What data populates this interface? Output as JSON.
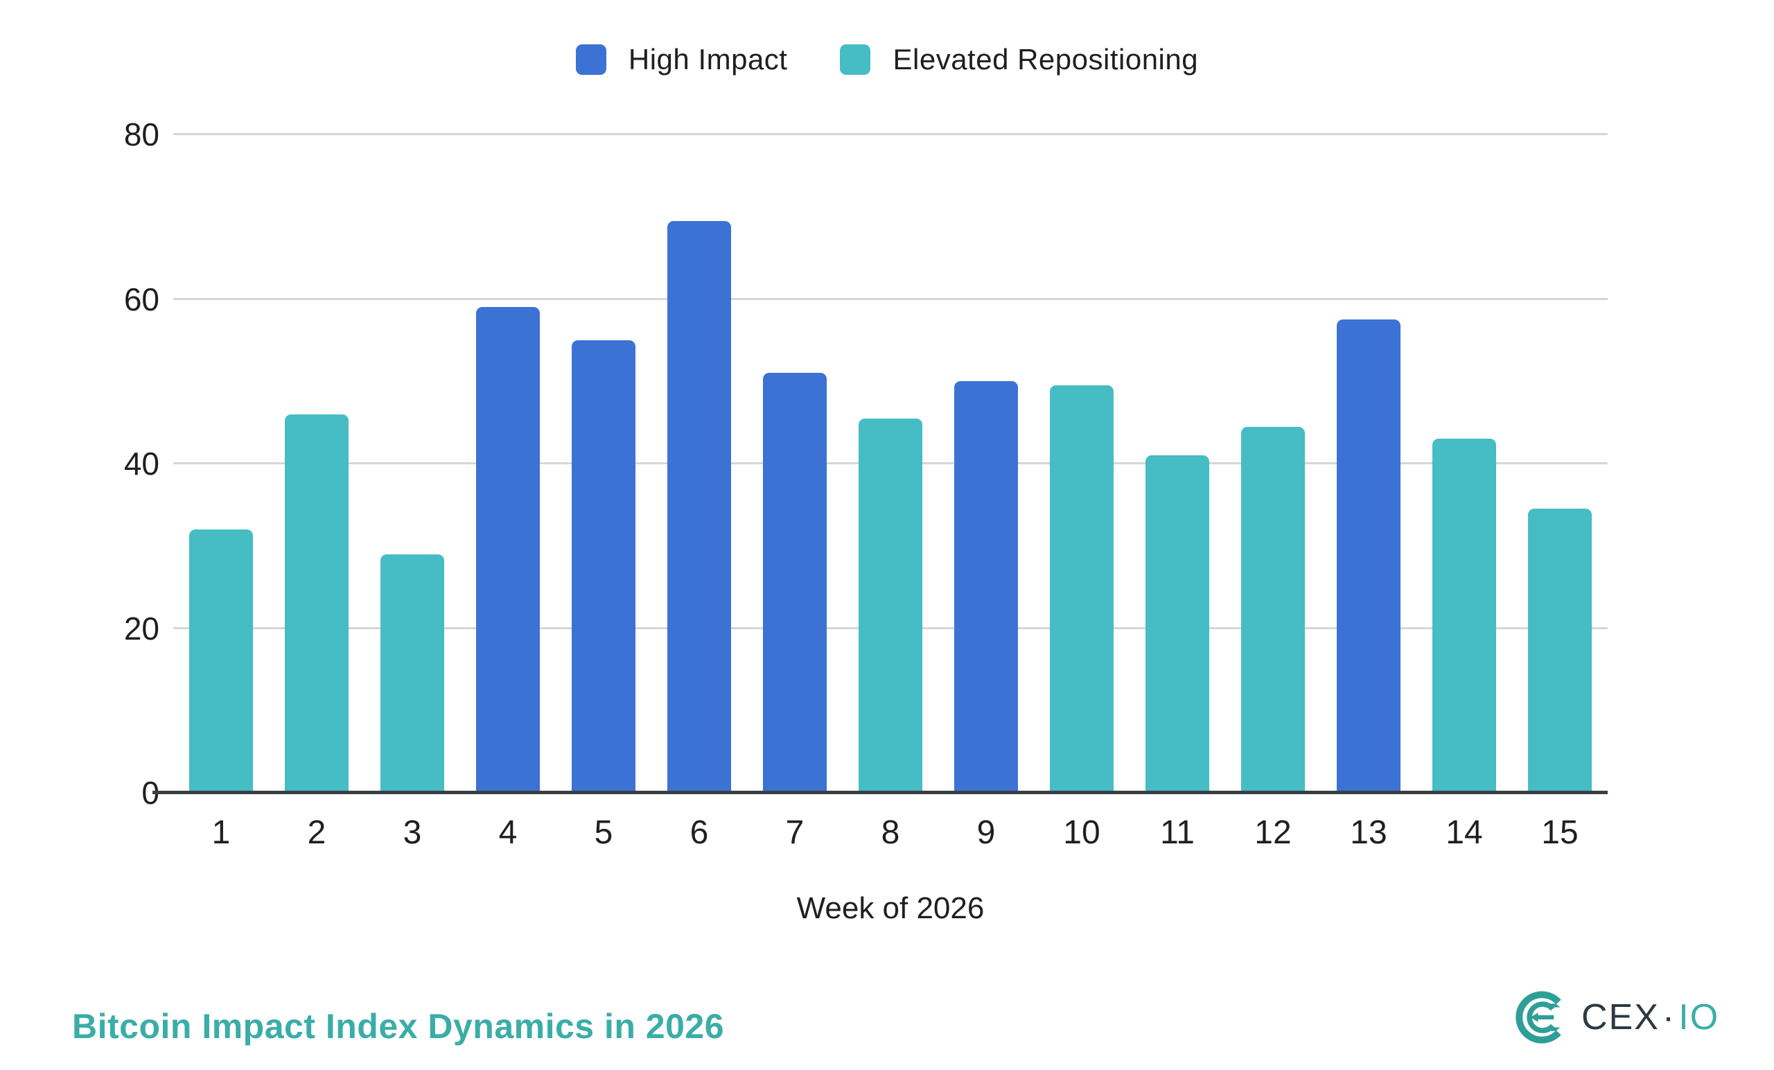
{
  "legend": {
    "items": [
      {
        "label": "High Impact",
        "color": "#3d72d5"
      },
      {
        "label": "Elevated Repositioning",
        "color": "#46bcc4"
      }
    ]
  },
  "footer": {
    "title": "Bitcoin Impact Index Dynamics in 2026",
    "title_color": "#3badA7",
    "logo": {
      "icon_name": "cexio-logo-icon",
      "text_primary": "CEX",
      "separator": "·",
      "text_secondary": "IO",
      "mark_color": "#2e9e98",
      "text_color": "#2d383f",
      "accent_color": "#3badA7"
    }
  },
  "chart_data": {
    "type": "bar",
    "title": "Bitcoin Impact Index Dynamics in 2026",
    "xlabel": "Week of 2026",
    "ylabel": "",
    "ylim": [
      0,
      80
    ],
    "y_ticks": [
      80,
      60,
      40,
      20,
      0
    ],
    "grid": "horizontal",
    "legend_position": "top-center",
    "categories": [
      1,
      2,
      3,
      4,
      5,
      6,
      7,
      8,
      9,
      10,
      11,
      12,
      13,
      14,
      15
    ],
    "series": [
      {
        "name": "High Impact",
        "color": "#3d72d5",
        "values": [
          null,
          null,
          null,
          59,
          55,
          69.5,
          51,
          null,
          50,
          null,
          null,
          null,
          57.5,
          null,
          null
        ]
      },
      {
        "name": "Elevated Repositioning",
        "color": "#46bcc4",
        "values": [
          32,
          46,
          29,
          null,
          null,
          null,
          null,
          45.5,
          null,
          49.5,
          41,
          44.5,
          null,
          43,
          34.5
        ]
      }
    ],
    "axis_colors": {
      "gridline": "#d6d6d6",
      "baseline": "#3b3f44",
      "tick_text": "#1f1f1f"
    }
  }
}
